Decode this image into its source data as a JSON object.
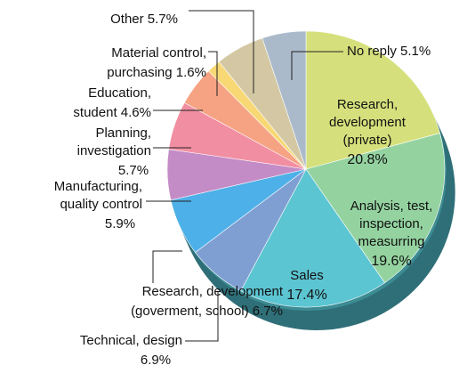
{
  "chart_data": {
    "type": "pie",
    "categories": [
      [
        "Research,",
        "development",
        "(private)"
      ],
      [
        "Analysis, test,",
        "inspection,",
        "measurring"
      ],
      [
        "Sales"
      ],
      [
        "Technical, design"
      ],
      [
        "Research, development",
        "(goverment, school)"
      ],
      [
        "Manufacturing,",
        "quality control"
      ],
      [
        "Planning,",
        "investigation"
      ],
      [
        "Education,",
        "student"
      ],
      [
        "Material control,",
        "purchasing"
      ],
      [
        "Other"
      ],
      [
        "No reply"
      ]
    ],
    "values": [
      20.8,
      19.6,
      17.4,
      6.9,
      6.7,
      5.9,
      5.7,
      4.6,
      1.6,
      5.7,
      5.1
    ],
    "value_labels": [
      "20.8%",
      "19.6%",
      "17.4%",
      "6.9%",
      "6.7%",
      "5.9%",
      "5.7%",
      "4.6%",
      "1.6%",
      "5.7%",
      "5.1%"
    ],
    "colors": [
      "#d5e07c",
      "#94d3a0",
      "#5cc5d2",
      "#7f9fd2",
      "#4eb0e8",
      "#c48cc6",
      "#f28ea2",
      "#f6a384",
      "#f8d874",
      "#d4c8a4",
      "#abbacb"
    ]
  }
}
